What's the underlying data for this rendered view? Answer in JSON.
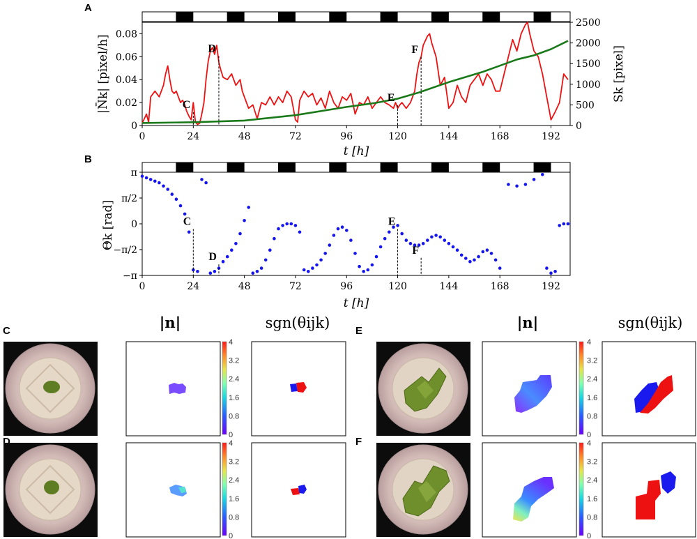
{
  "panels": {
    "A": "A",
    "B": "B",
    "C": "C",
    "D": "D",
    "E": "E",
    "F": "F"
  },
  "colors": {
    "norm_series": "#ee1111",
    "area_series": "#1a7a1a",
    "angle_series": "#1515ee",
    "negative_sign": "#1a1aee",
    "positive_sign": "#ee1111",
    "dish_rim": "#cdb6b8",
    "dish_inner": "#dcc8bf",
    "plant": "#6d8c2a",
    "photo_bg": "#0c0c0c"
  },
  "light_dark_bar": {
    "period_h": 24,
    "dark_from_h": 16,
    "dark_to_h": 24
  },
  "chart_data": [
    {
      "id": "A",
      "type": "line",
      "xlabel": "t [h]",
      "ylabel_left": "|N̄k| [pixel/h]",
      "ylabel_right": "Sk [pixel]",
      "xlim": [
        0,
        201
      ],
      "ylim_left": [
        0,
        0.09
      ],
      "ylim_right": [
        0,
        2500
      ],
      "xticks": [
        "0",
        "24",
        "48",
        "72",
        "96",
        "120",
        "144",
        "168",
        "192"
      ],
      "xtick_values": [
        0,
        24,
        48,
        72,
        96,
        120,
        144,
        168,
        192
      ],
      "yticks_left": [
        "0",
        "0.02",
        "0.04",
        "0.06",
        "0.08"
      ],
      "ytick_left_values": [
        0,
        0.02,
        0.04,
        0.06,
        0.08
      ],
      "yticks_right": [
        "0",
        "500",
        "1000",
        "1500",
        "2000",
        "2500"
      ],
      "ytick_right_values": [
        0,
        500,
        1000,
        1500,
        2000,
        2500
      ],
      "series": [
        {
          "name": "|N̄k|",
          "axis": "left",
          "x": [
            0,
            2,
            3,
            4,
            6,
            8,
            10,
            11,
            12,
            13,
            14,
            15,
            16,
            17,
            18,
            19,
            20,
            21,
            22,
            23,
            24,
            25,
            26,
            27,
            28,
            29,
            30,
            31,
            32,
            33,
            34,
            35,
            36,
            37,
            38,
            40,
            42,
            44,
            46,
            47,
            48,
            50,
            52,
            54,
            56,
            58,
            60,
            62,
            64,
            66,
            68,
            70,
            72,
            73,
            74,
            76,
            78,
            80,
            82,
            84,
            86,
            88,
            90,
            92,
            94,
            96,
            98,
            100,
            102,
            104,
            106,
            108,
            110,
            112,
            114,
            116,
            118,
            119,
            120,
            121,
            122,
            124,
            126,
            128,
            129,
            130,
            131,
            132,
            134,
            135,
            136,
            138,
            140,
            142,
            144,
            146,
            148,
            150,
            152,
            154,
            156,
            158,
            160,
            162,
            164,
            166,
            168,
            170,
            172,
            174,
            176,
            178,
            180,
            181,
            182,
            184,
            186,
            188,
            190,
            191,
            192,
            194,
            196,
            198,
            200
          ],
          "y": [
            0.002,
            0.01,
            0.003,
            0.025,
            0.03,
            0.025,
            0.035,
            0.045,
            0.052,
            0.04,
            0.03,
            0.028,
            0.03,
            0.025,
            0.02,
            0.022,
            0.018,
            0.012,
            0.008,
            0.005,
            0.02,
            0.003,
            0.001,
            0.002,
            0.01,
            0.02,
            0.04,
            0.056,
            0.065,
            0.068,
            0.062,
            0.07,
            0.055,
            0.048,
            0.042,
            0.04,
            0.045,
            0.035,
            0.04,
            0.03,
            0.025,
            0.015,
            0.018,
            0.006,
            0.02,
            0.018,
            0.025,
            0.018,
            0.025,
            0.02,
            0.03,
            0.025,
            0.005,
            0.003,
            0.022,
            0.03,
            0.025,
            0.028,
            0.018,
            0.024,
            0.015,
            0.03,
            0.02,
            0.015,
            0.025,
            0.022,
            0.028,
            0.01,
            0.02,
            0.018,
            0.025,
            0.015,
            0.02,
            0.025,
            0.02,
            0.018,
            0.015,
            0.02,
            0.015,
            0.018,
            0.02,
            0.015,
            0.02,
            0.03,
            0.045,
            0.055,
            0.06,
            0.07,
            0.078,
            0.08,
            0.072,
            0.06,
            0.035,
            0.042,
            0.015,
            0.02,
            0.035,
            0.025,
            0.02,
            0.035,
            0.04,
            0.045,
            0.035,
            0.045,
            0.04,
            0.03,
            0.03,
            0.045,
            0.06,
            0.075,
            0.065,
            0.08,
            0.088,
            0.09,
            0.08,
            0.065,
            0.06,
            0.045,
            0.025,
            0.015,
            0.005,
            0.012,
            0.02,
            0.045,
            0.04
          ]
        },
        {
          "name": "Sk",
          "axis": "right",
          "x": [
            0,
            24,
            48,
            72,
            96,
            110,
            120,
            130,
            144,
            160,
            168,
            176,
            184,
            192,
            200
          ],
          "y": [
            60,
            80,
            120,
            250,
            450,
            550,
            650,
            800,
            1050,
            1300,
            1450,
            1600,
            1700,
            1850,
            2050
          ]
        }
      ],
      "annotations": [
        {
          "label": "C",
          "x": 24,
          "y": 0.014
        },
        {
          "label": "D",
          "x": 36,
          "y": 0.063
        },
        {
          "label": "E",
          "x": 120,
          "y": 0.02
        },
        {
          "label": "F",
          "x": 131,
          "y": 0.062
        }
      ]
    },
    {
      "id": "B",
      "type": "scatter",
      "xlabel": "t [h]",
      "ylabel": "Θk [rad]",
      "xlim": [
        0,
        201
      ],
      "ylim": [
        -3.1416,
        3.1416
      ],
      "xticks": [
        "0",
        "24",
        "48",
        "72",
        "96",
        "120",
        "144",
        "168",
        "192"
      ],
      "xtick_values": [
        0,
        24,
        48,
        72,
        96,
        120,
        144,
        168,
        192
      ],
      "yticks": [
        "π",
        "π/2",
        "0",
        "−π/2",
        "−π"
      ],
      "ytick_values": [
        3.1416,
        1.5708,
        0,
        -1.5708,
        -3.1416
      ],
      "series": [
        {
          "name": "Θk",
          "x": [
            0,
            2,
            4,
            6,
            8,
            10,
            12,
            14,
            16,
            18,
            20,
            22,
            24,
            26,
            28,
            30,
            32,
            34,
            36,
            38,
            40,
            42,
            44,
            46,
            48,
            50,
            52,
            54,
            56,
            58,
            60,
            62,
            64,
            66,
            68,
            70,
            72,
            74,
            76,
            78,
            80,
            82,
            84,
            86,
            88,
            90,
            92,
            94,
            96,
            98,
            100,
            102,
            104,
            106,
            108,
            110,
            112,
            114,
            116,
            118,
            120,
            122,
            124,
            126,
            128,
            130,
            132,
            134,
            136,
            138,
            140,
            142,
            144,
            146,
            148,
            150,
            152,
            154,
            156,
            158,
            160,
            162,
            164,
            166,
            168,
            172,
            176,
            180,
            184,
            188,
            190,
            192,
            194,
            196,
            198,
            200
          ],
          "y": [
            2.9,
            2.8,
            2.7,
            2.6,
            2.5,
            2.3,
            2.1,
            1.8,
            1.5,
            1.1,
            0.6,
            -0.5,
            -2.8,
            -2.9,
            2.7,
            2.5,
            -3.0,
            -2.9,
            -2.7,
            -2.3,
            -2.0,
            -1.6,
            -1.2,
            -0.6,
            0.2,
            1.0,
            -3.0,
            -2.9,
            -2.7,
            -2.2,
            -1.6,
            -0.9,
            -0.3,
            -0.1,
            0.0,
            0.0,
            -0.1,
            -0.5,
            -2.8,
            -2.9,
            -2.7,
            -2.5,
            -2.2,
            -1.8,
            -1.3,
            -0.7,
            -0.3,
            -0.2,
            -0.4,
            -1.0,
            -1.8,
            -2.6,
            -2.9,
            -2.8,
            -2.5,
            -2.0,
            -1.4,
            -0.9,
            -0.5,
            -0.2,
            -0.1,
            -0.6,
            -1.0,
            -1.2,
            -1.3,
            -1.3,
            -1.2,
            -1.0,
            -0.8,
            -0.7,
            -0.8,
            -1.0,
            -1.2,
            -1.4,
            -1.6,
            -1.9,
            -2.1,
            -2.3,
            -2.2,
            -2.0,
            -1.7,
            -1.6,
            -1.8,
            -2.2,
            -2.7,
            2.4,
            2.3,
            2.4,
            2.7,
            3.0,
            -2.7,
            -3.0,
            -2.9,
            -0.1,
            0.0,
            0.0
          ]
        }
      ],
      "annotations": [
        {
          "label": "C",
          "x": 24,
          "y": -0.15
        },
        {
          "label": "D",
          "x": 36,
          "y": -2.3
        },
        {
          "label": "E",
          "x": 120,
          "y": -0.15
        },
        {
          "label": "F",
          "x": 131,
          "y": -1.9
        }
      ]
    }
  ],
  "bottom": {
    "left_headers": {
      "n": "|n|",
      "sgn": "sgn(θijk)"
    },
    "right_headers": {
      "n": "|n|",
      "sgn": "sgn(θijk)"
    },
    "colorbar_ticks": [
      "4",
      "3.2",
      "2.4",
      "1.6",
      "0.8",
      "0"
    ]
  }
}
